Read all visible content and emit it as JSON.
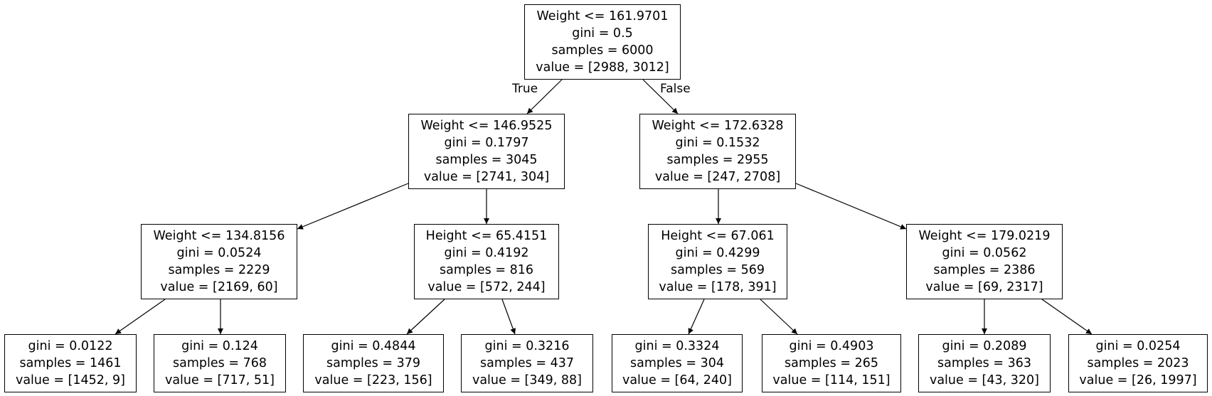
{
  "nodes": [
    {
      "id": "n0",
      "lines": [
        "Weight <= 161.9701",
        "gini = 0.5",
        "samples = 6000",
        "value = [2988, 3012]"
      ]
    },
    {
      "id": "n1",
      "lines": [
        "Weight <= 146.9525",
        "gini = 0.1797",
        "samples = 3045",
        "value = [2741, 304]"
      ]
    },
    {
      "id": "n2",
      "lines": [
        "Weight <= 172.6328",
        "gini = 0.1532",
        "samples = 2955",
        "value = [247, 2708]"
      ]
    },
    {
      "id": "n3",
      "lines": [
        "Weight <= 134.8156",
        "gini = 0.0524",
        "samples = 2229",
        "value = [2169, 60]"
      ]
    },
    {
      "id": "n4",
      "lines": [
        "Height <= 65.4151",
        "gini = 0.4192",
        "samples = 816",
        "value = [572, 244]"
      ]
    },
    {
      "id": "n5",
      "lines": [
        "Height <= 67.061",
        "gini = 0.4299",
        "samples = 569",
        "value = [178, 391]"
      ]
    },
    {
      "id": "n6",
      "lines": [
        "Weight <= 179.0219",
        "gini = 0.0562",
        "samples = 2386",
        "value = [69, 2317]"
      ]
    },
    {
      "id": "n7",
      "lines": [
        "gini = 0.0122",
        "samples = 1461",
        "value = [1452, 9]"
      ]
    },
    {
      "id": "n8",
      "lines": [
        "gini = 0.124",
        "samples = 768",
        "value = [717, 51]"
      ]
    },
    {
      "id": "n9",
      "lines": [
        "gini = 0.4844",
        "samples = 379",
        "value = [223, 156]"
      ]
    },
    {
      "id": "n10",
      "lines": [
        "gini = 0.3216",
        "samples = 437",
        "value = [349, 88]"
      ]
    },
    {
      "id": "n11",
      "lines": [
        "gini = 0.3324",
        "samples = 304",
        "value = [64, 240]"
      ]
    },
    {
      "id": "n12",
      "lines": [
        "gini = 0.4903",
        "samples = 265",
        "value = [114, 151]"
      ]
    },
    {
      "id": "n13",
      "lines": [
        "gini = 0.2089",
        "samples = 363",
        "value = [43, 320]"
      ]
    },
    {
      "id": "n14",
      "lines": [
        "gini = 0.0254",
        "samples = 2023",
        "value = [26, 1997]"
      ]
    }
  ],
  "edges": [
    {
      "from": "n0",
      "to": "n1",
      "label": "True"
    },
    {
      "from": "n0",
      "to": "n2",
      "label": "False"
    },
    {
      "from": "n1",
      "to": "n3",
      "label": ""
    },
    {
      "from": "n1",
      "to": "n4",
      "label": ""
    },
    {
      "from": "n2",
      "to": "n5",
      "label": ""
    },
    {
      "from": "n2",
      "to": "n6",
      "label": ""
    },
    {
      "from": "n3",
      "to": "n7",
      "label": ""
    },
    {
      "from": "n3",
      "to": "n8",
      "label": ""
    },
    {
      "from": "n4",
      "to": "n9",
      "label": ""
    },
    {
      "from": "n4",
      "to": "n10",
      "label": ""
    },
    {
      "from": "n5",
      "to": "n11",
      "label": ""
    },
    {
      "from": "n5",
      "to": "n12",
      "label": ""
    },
    {
      "from": "n6",
      "to": "n13",
      "label": ""
    },
    {
      "from": "n6",
      "to": "n14",
      "label": ""
    }
  ]
}
